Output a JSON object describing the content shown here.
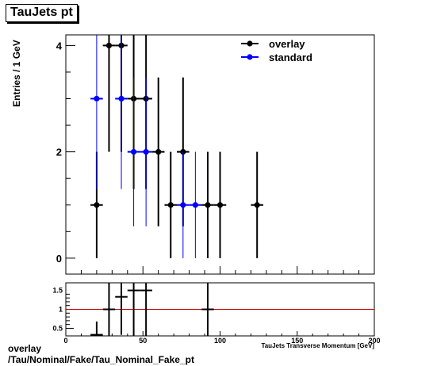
{
  "title": "TauJets pt",
  "footer": {
    "line1": "overlay",
    "line2": "/Tau/Nominal/Fake/Tau_Nominal_Fake_pt"
  },
  "chart_data": [
    {
      "type": "scatter",
      "title": "TauJets pt",
      "ylabel": "Entries / 1 GeV",
      "xlim": [
        0,
        200
      ],
      "ylim": [
        -0.3,
        4.2
      ],
      "yticks": [
        0,
        2,
        4
      ],
      "legend_position": "top-right",
      "series": [
        {
          "name": "overlay",
          "color": "#000000",
          "points": [
            {
              "x": 20,
              "xerr": 4,
              "y": 1,
              "yerr": 1
            },
            {
              "x": 28,
              "xerr": 4,
              "y": 4,
              "yerr": 2
            },
            {
              "x": 36,
              "xerr": 4,
              "y": 4,
              "yerr": 2
            },
            {
              "x": 44,
              "xerr": 4,
              "y": 3,
              "yerr": 1.7
            },
            {
              "x": 52,
              "xerr": 4,
              "y": 3,
              "yerr": 1.7
            },
            {
              "x": 60,
              "xerr": 4,
              "y": 2,
              "yerr": 1.4
            },
            {
              "x": 68,
              "xerr": 4,
              "y": 1,
              "yerr": 1
            },
            {
              "x": 76,
              "xerr": 4,
              "y": 2,
              "yerr": 1.4
            },
            {
              "x": 92,
              "xerr": 4,
              "y": 1,
              "yerr": 1
            },
            {
              "x": 100,
              "xerr": 4,
              "y": 1,
              "yerr": 1
            },
            {
              "x": 124,
              "xerr": 4,
              "y": 1,
              "yerr": 1
            }
          ]
        },
        {
          "name": "standard",
          "color": "#0000ff",
          "points": [
            {
              "x": 20,
              "xerr": 4,
              "y": 3,
              "yerr": 1.7
            },
            {
              "x": 36,
              "xerr": 4,
              "y": 3,
              "yerr": 1.7
            },
            {
              "x": 44,
              "xerr": 4,
              "y": 2,
              "yerr": 1.4
            },
            {
              "x": 52,
              "xerr": 4,
              "y": 2,
              "yerr": 1.4
            },
            {
              "x": 76,
              "xerr": 4,
              "y": 1,
              "yerr": 1
            },
            {
              "x": 84,
              "xerr": 4,
              "y": 1,
              "yerr": 1
            }
          ]
        }
      ]
    },
    {
      "type": "scatter",
      "xlabel": "TauJets Transverse Momentum [GeV]",
      "xlim": [
        0,
        200
      ],
      "xticks": [
        0,
        50,
        100,
        150,
        200
      ],
      "ylim": [
        0.3,
        1.7
      ],
      "yticks": [
        0.5,
        1,
        1.5
      ],
      "reference_line": {
        "y": 1,
        "color": "#cc0000"
      },
      "series": [
        {
          "color": "#000000",
          "points": [
            {
              "x": 20,
              "xerr": 4,
              "y": 0.33,
              "yerr": 0.35
            },
            {
              "x": 28,
              "xerr": 4,
              "y": 1.0,
              "yerr": 0.9
            },
            {
              "x": 36,
              "xerr": 4,
              "y": 1.33,
              "yerr": 1.0
            },
            {
              "x": 44,
              "xerr": 4,
              "y": 1.5,
              "yerr": 1.2
            },
            {
              "x": 52,
              "xerr": 4,
              "y": 1.5,
              "yerr": 1.2
            },
            {
              "x": 92,
              "xerr": 4,
              "y": 1.0,
              "yerr": 1.2
            }
          ]
        }
      ]
    }
  ]
}
